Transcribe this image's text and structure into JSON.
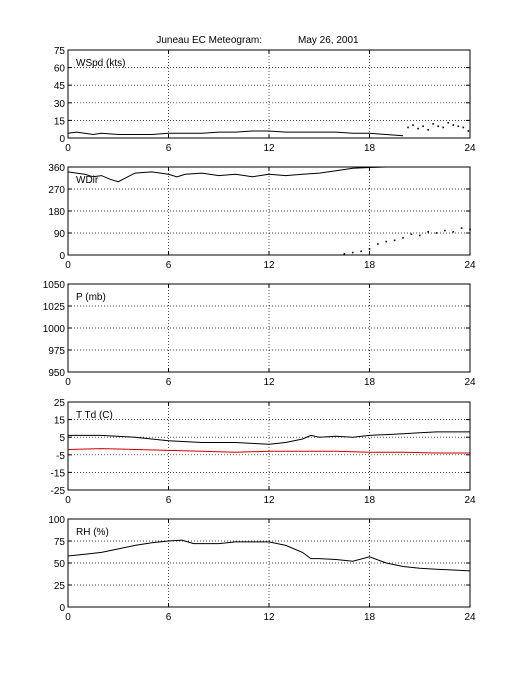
{
  "title": {
    "station": "Juneau EC Meteogram:",
    "date": "May 26, 2001"
  },
  "colors": {
    "axis": "#000000",
    "grid": "#000000",
    "primary": "#000000",
    "secondary": "#cc0000",
    "background": "#ffffff"
  },
  "chart_data": [
    {
      "type": "line",
      "ylabel": "WSpd (kts)",
      "xlim": [
        0,
        24
      ],
      "ylim": [
        0,
        75
      ],
      "xticks": [
        0,
        6,
        12,
        18,
        24
      ],
      "yticks": [
        0,
        15,
        30,
        45,
        60,
        75
      ],
      "grid": true,
      "series": [
        {
          "style": "line",
          "x": [
            0,
            0.5,
            1,
            1.5,
            2,
            3,
            4,
            5,
            6,
            7,
            8,
            9,
            10,
            11,
            12,
            13,
            14,
            15,
            16,
            17,
            18,
            19,
            20
          ],
          "y": [
            4,
            5,
            4,
            3,
            4,
            3,
            3,
            3,
            4,
            4,
            4,
            5,
            5,
            6,
            6,
            5,
            5,
            5,
            5,
            4,
            4,
            3,
            2
          ]
        },
        {
          "style": "dots",
          "x": [
            20.3,
            20.6,
            20.9,
            21.2,
            21.5,
            21.8,
            22.1,
            22.4,
            22.7,
            23.0,
            23.3,
            23.6,
            23.9
          ],
          "y": [
            9,
            11,
            8,
            10,
            7,
            12,
            10,
            9,
            13,
            11,
            10,
            9,
            6
          ]
        }
      ]
    },
    {
      "type": "line",
      "ylabel": "WDir",
      "xlim": [
        0,
        24
      ],
      "ylim": [
        0,
        360
      ],
      "xticks": [
        0,
        6,
        12,
        18,
        24
      ],
      "yticks": [
        0,
        90,
        180,
        270,
        360
      ],
      "grid": true,
      "series": [
        {
          "style": "line",
          "x": [
            0,
            0.5,
            1,
            1.5,
            2,
            2.5,
            3,
            4,
            5,
            6,
            6.5,
            7,
            8,
            9,
            10,
            11,
            12,
            13,
            14,
            15,
            16,
            17,
            18,
            19,
            20
          ],
          "y": [
            340,
            335,
            330,
            320,
            325,
            310,
            300,
            335,
            340,
            330,
            320,
            330,
            335,
            325,
            330,
            320,
            330,
            325,
            330,
            335,
            345,
            355,
            358,
            360,
            360
          ]
        },
        {
          "style": "dots",
          "x": [
            16.5,
            17.0,
            17.5,
            18.0,
            18.5,
            19.0,
            19.5,
            20.0,
            20.5,
            21.0,
            21.5,
            22.0,
            22.5,
            23.0,
            23.5,
            24.0
          ],
          "y": [
            5,
            10,
            15,
            25,
            45,
            55,
            60,
            70,
            85,
            80,
            95,
            90,
            100,
            95,
            110,
            105
          ]
        }
      ]
    },
    {
      "type": "line",
      "ylabel": "P (mb)",
      "xlim": [
        0,
        24
      ],
      "ylim": [
        950,
        1050
      ],
      "xticks": [
        0,
        6,
        12,
        18,
        24
      ],
      "yticks": [
        950,
        975,
        1000,
        1025,
        1050
      ],
      "grid": true,
      "series": []
    },
    {
      "type": "line",
      "ylabel": "T Td (C)",
      "xlim": [
        0,
        24
      ],
      "ylim": [
        -25,
        25
      ],
      "xticks": [
        0,
        6,
        12,
        18,
        24
      ],
      "yticks": [
        -25,
        -15,
        -5,
        5,
        15,
        25
      ],
      "grid": true,
      "series": [
        {
          "style": "line",
          "color_key": "primary",
          "x": [
            0,
            2,
            4,
            6,
            8,
            10,
            11,
            12,
            13,
            14,
            14.5,
            15,
            16,
            17,
            18,
            19,
            20,
            21,
            22,
            23,
            24
          ],
          "y": [
            6,
            6,
            5,
            3,
            2,
            2,
            1.5,
            1,
            2,
            4,
            6,
            5,
            5.5,
            5,
            6,
            6.5,
            7,
            7.5,
            8,
            8,
            8
          ]
        },
        {
          "style": "line",
          "color_key": "secondary",
          "x": [
            0,
            2,
            4,
            6,
            8,
            10,
            12,
            14,
            16,
            18,
            20,
            22,
            24
          ],
          "y": [
            -2,
            -1.5,
            -2,
            -2.5,
            -3,
            -3.5,
            -3,
            -3,
            -3,
            -3.5,
            -3.5,
            -4,
            -4
          ]
        }
      ]
    },
    {
      "type": "line",
      "ylabel": "RH (%)",
      "xlim": [
        0,
        24
      ],
      "ylim": [
        0,
        100
      ],
      "xticks": [
        0,
        6,
        12,
        18,
        24
      ],
      "yticks": [
        0,
        25,
        50,
        75,
        100
      ],
      "grid": true,
      "series": [
        {
          "style": "line",
          "x": [
            0,
            1,
            2,
            3,
            4,
            5,
            6,
            6.8,
            7.5,
            8,
            9,
            10,
            11,
            12,
            13,
            14,
            14.5,
            15,
            16,
            17,
            18,
            19,
            20,
            21,
            22,
            23,
            24
          ],
          "y": [
            58,
            60,
            62,
            66,
            70,
            73,
            75,
            76,
            72,
            72,
            72,
            74,
            74,
            74,
            70,
            62,
            55,
            55,
            54,
            52,
            57,
            50,
            46,
            44,
            43,
            42,
            41
          ]
        }
      ]
    }
  ]
}
